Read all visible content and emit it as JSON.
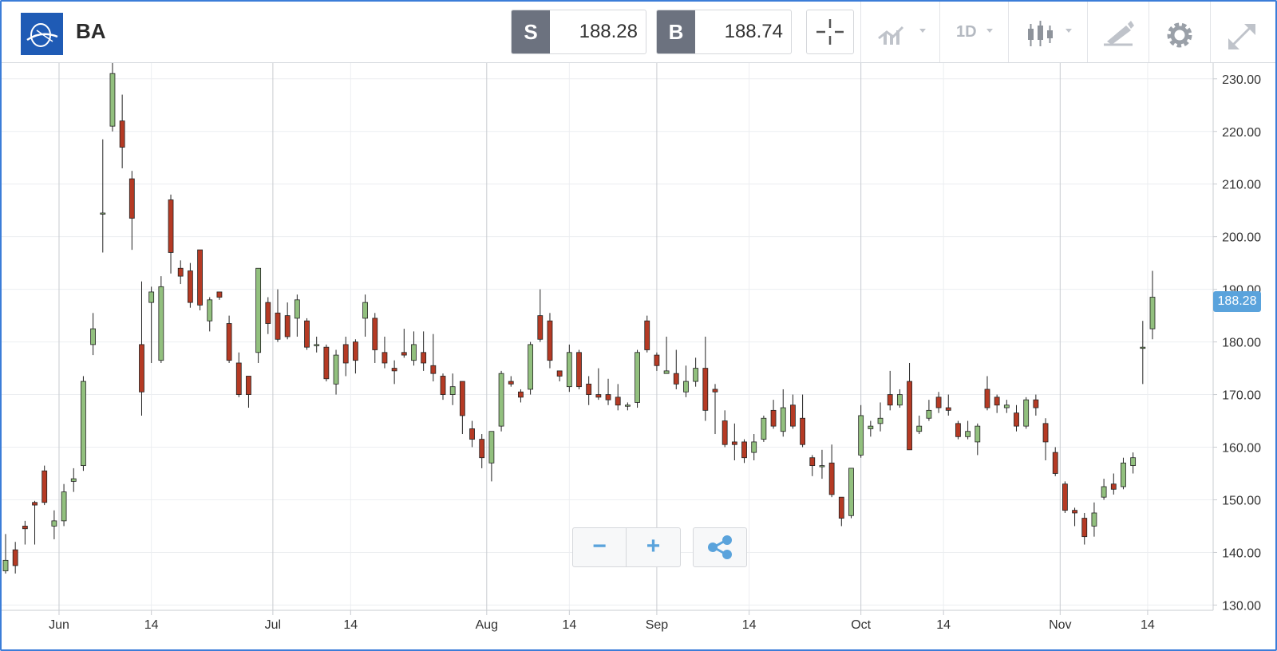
{
  "toolbar": {
    "symbol": "BA",
    "sell": {
      "tag": "S",
      "value": "188.28"
    },
    "buy": {
      "tag": "B",
      "value": "188.74"
    },
    "timeframe": "1D",
    "icons": [
      "crosshair-icon",
      "compare-icon",
      "chart-type-candles-icon",
      "draw-icon",
      "gear-icon",
      "fullscreen-icon"
    ]
  },
  "price_tag": "188.28",
  "colors": {
    "up": "#92c07e",
    "down": "#b53a24",
    "accent": "#5aa3dc"
  },
  "zoom_controls": {
    "zoom_out": "−",
    "zoom_in": "+"
  },
  "chart_data": {
    "type": "candlestick",
    "ylim": [
      129,
      233
    ],
    "y_ticks": [
      "230.00",
      "220.00",
      "210.00",
      "200.00",
      "190.00",
      "180.00",
      "170.00",
      "160.00",
      "150.00",
      "140.00",
      "130.00"
    ],
    "x_labels": [
      "Jun",
      "14",
      "Jul",
      "14",
      "Aug",
      "14",
      "Sep",
      "14",
      "Oct",
      "14",
      "Nov",
      "14"
    ],
    "candles": [
      [
        136.5,
        138.5,
        143.5,
        136
      ],
      [
        140.5,
        137.5,
        142,
        136
      ],
      [
        145,
        144.5,
        146,
        141.5
      ],
      [
        149.5,
        149,
        149.8,
        141.5
      ],
      [
        155.5,
        149.5,
        156.5,
        149
      ],
      [
        145,
        146,
        148,
        142.5
      ],
      [
        146,
        151.5,
        153,
        145
      ],
      [
        153.5,
        154,
        156,
        151.5
      ],
      [
        156.5,
        172.5,
        173.5,
        155.5
      ],
      [
        179.5,
        182.5,
        185.5,
        177.5
      ],
      [
        204.5,
        204.5,
        218.5,
        197
      ],
      [
        221,
        231,
        233,
        220
      ],
      [
        222,
        217,
        227,
        213
      ],
      [
        211,
        203.5,
        212.5,
        197.5
      ],
      [
        179.5,
        170.5,
        191.5,
        166
      ],
      [
        187.5,
        189.5,
        190.5,
        176
      ],
      [
        176.5,
        190.5,
        192.5,
        176
      ],
      [
        207,
        197,
        208,
        193
      ],
      [
        194,
        192.5,
        195.5,
        191
      ],
      [
        193.5,
        187.5,
        195,
        186.5
      ],
      [
        197.5,
        187,
        197.5,
        186
      ],
      [
        184,
        188,
        188.5,
        182
      ],
      [
        189.5,
        188.5,
        189.5,
        188
      ],
      [
        183.5,
        176.5,
        185,
        176
      ],
      [
        176,
        170,
        178,
        169.5
      ],
      [
        173.5,
        170,
        173.5,
        167.5
      ],
      [
        178,
        194,
        194,
        176
      ],
      [
        187.5,
        183.5,
        188.5,
        181.5
      ],
      [
        185.5,
        180.5,
        190,
        180
      ],
      [
        185,
        181,
        187.5,
        180.5
      ],
      [
        184.5,
        188,
        189,
        181
      ],
      [
        184,
        179,
        184.5,
        178.5
      ],
      [
        179.5,
        179.5,
        181,
        178
      ],
      [
        179,
        173,
        179.5,
        172.5
      ],
      [
        172,
        177.5,
        178.5,
        170
      ],
      [
        179.5,
        176,
        181,
        173.5
      ],
      [
        180,
        176.5,
        180.5,
        174
      ],
      [
        184.5,
        187.5,
        189,
        181
      ],
      [
        184.5,
        178.5,
        185.5,
        176
      ],
      [
        178,
        176,
        181,
        175
      ],
      [
        175,
        174.5,
        176.5,
        172
      ],
      [
        178,
        177.5,
        182.5,
        177
      ],
      [
        176.5,
        179.5,
        182,
        175.5
      ],
      [
        178,
        176,
        182,
        174.5
      ],
      [
        175.5,
        174,
        181.5,
        172.5
      ],
      [
        173.5,
        170,
        174,
        169
      ],
      [
        170,
        171.5,
        174,
        168
      ],
      [
        172.5,
        166,
        172.5,
        162.5
      ],
      [
        163.5,
        161.5,
        165,
        160
      ],
      [
        161.5,
        158,
        162.5,
        156
      ],
      [
        157,
        163,
        163,
        153.5
      ],
      [
        164,
        174,
        174.5,
        163
      ],
      [
        172.5,
        172,
        173.5,
        171.5
      ],
      [
        170.5,
        169.5,
        171,
        168.5
      ],
      [
        171,
        179.5,
        180,
        170
      ],
      [
        185,
        180.5,
        190,
        180
      ],
      [
        184,
        176.5,
        185.5,
        175
      ],
      [
        174.5,
        173.5,
        174.5,
        172.5
      ],
      [
        171.5,
        178,
        179.5,
        170.5
      ],
      [
        178,
        171.5,
        178.5,
        171
      ],
      [
        172,
        170,
        173.5,
        168
      ],
      [
        170,
        169.5,
        175,
        169
      ],
      [
        170,
        169,
        173,
        168
      ],
      [
        169.5,
        168,
        172,
        167
      ],
      [
        168,
        168,
        168.5,
        167
      ],
      [
        168.5,
        178,
        178.5,
        167.5
      ],
      [
        184,
        178.5,
        185,
        178
      ],
      [
        177.5,
        175.5,
        178,
        174.5
      ],
      [
        174,
        174.5,
        181,
        174
      ],
      [
        174,
        172,
        178.5,
        171
      ],
      [
        170.5,
        172.5,
        175.5,
        169.5
      ],
      [
        172.5,
        175,
        177,
        171.5
      ],
      [
        175,
        167,
        181,
        165
      ],
      [
        171,
        170.5,
        172,
        162.5
      ],
      [
        165,
        160.5,
        167,
        160
      ],
      [
        161,
        160.5,
        164.5,
        157.5
      ],
      [
        161,
        158,
        161.5,
        157
      ],
      [
        159,
        161,
        162.5,
        157.5
      ],
      [
        161.5,
        165.5,
        166,
        161
      ],
      [
        167,
        164,
        169,
        163.5
      ],
      [
        163,
        167.5,
        171,
        162
      ],
      [
        168,
        164,
        170,
        163.5
      ],
      [
        165.5,
        160.5,
        170,
        160
      ],
      [
        158,
        156.5,
        158.5,
        154.5
      ],
      [
        156.5,
        156.5,
        159.5,
        154
      ],
      [
        157,
        151,
        160.5,
        150.5
      ],
      [
        150.5,
        146.5,
        150.5,
        145
      ],
      [
        147,
        156,
        156,
        146.5
      ],
      [
        158.5,
        166,
        168,
        158
      ],
      [
        163.5,
        164,
        165,
        162
      ],
      [
        164.5,
        165.5,
        168.5,
        163
      ],
      [
        170,
        168,
        174.5,
        167
      ],
      [
        168,
        170,
        171,
        167.5
      ],
      [
        172.5,
        159.5,
        176,
        159.5
      ],
      [
        163,
        164,
        166,
        162.5
      ],
      [
        165.5,
        167,
        169,
        165
      ],
      [
        169.5,
        167.5,
        170.5,
        166.5
      ],
      [
        167.5,
        167,
        170,
        166
      ],
      [
        164.5,
        162,
        165,
        161.5
      ],
      [
        162,
        163,
        165,
        161.5
      ],
      [
        161,
        164,
        164.5,
        158.5
      ],
      [
        171,
        167.5,
        173.5,
        167
      ],
      [
        169.5,
        168,
        170,
        166.5
      ],
      [
        167.5,
        168,
        169,
        166.5
      ],
      [
        166.5,
        164,
        168,
        163
      ],
      [
        164,
        169,
        169.5,
        163.5
      ],
      [
        169,
        167.5,
        170,
        166
      ],
      [
        164.5,
        161,
        165.5,
        157.5
      ],
      [
        159,
        155,
        160,
        154.5
      ],
      [
        153,
        148,
        153.5,
        147.5
      ],
      [
        148,
        147.5,
        148.5,
        145
      ],
      [
        146.5,
        143,
        147.5,
        141.5
      ],
      [
        145,
        147.5,
        149.5,
        143
      ],
      [
        150.5,
        152.5,
        154,
        150
      ],
      [
        153,
        152,
        155,
        151
      ],
      [
        152.5,
        157,
        158,
        152
      ],
      [
        156.5,
        158,
        159,
        155
      ],
      [
        179,
        179,
        184,
        172
      ],
      [
        182.5,
        188.5,
        193.5,
        180.5
      ]
    ]
  }
}
